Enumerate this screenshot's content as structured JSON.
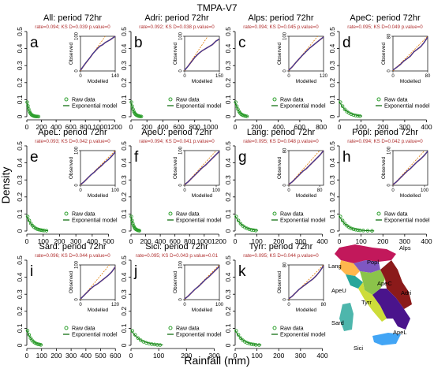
{
  "figure": {
    "suptitle": "TMPA-V7",
    "ylabel": "Density",
    "xlabel": "Rainfall (mm)",
    "legend": {
      "raw": "Raw data",
      "model": "Exponential model"
    },
    "inset_xlabel": "Modelled",
    "inset_ylabel": "Observed",
    "colors": {
      "raw": "#2ca02c",
      "model": "#006400",
      "qq": "#1f3fb4",
      "qq_edge": "#c0392b",
      "ref": "#e07b00",
      "stats": "#b03030"
    }
  },
  "map": {
    "region_labels": [
      "Alps",
      "Popl",
      "Lang",
      "ApeC",
      "Adri",
      "ApeU",
      "Tyrr",
      "Sard",
      "ApeL",
      "Sici"
    ]
  },
  "chart_data": [
    {
      "letter": "a",
      "title": "All: period 72hr",
      "stats": "rate=0.094; KS D=0.039 p.value=0",
      "type": "scatter",
      "xlim": [
        0,
        1250
      ],
      "xticks": [
        0,
        200,
        400,
        600,
        800,
        1000,
        1200
      ],
      "ylim": [
        0,
        0.5
      ],
      "yticks": [
        0.0,
        0.1,
        0.2,
        0.3,
        0.4,
        0.5
      ],
      "raw_x": [
        5,
        15,
        25,
        35,
        45,
        55,
        65,
        75,
        85,
        95,
        105,
        115,
        125,
        140,
        160
      ],
      "raw_y": [
        0.085,
        0.063,
        0.045,
        0.032,
        0.022,
        0.016,
        0.011,
        0.008,
        0.006,
        0.004,
        0.003,
        0.002,
        0.0015,
        0.001,
        0.0006
      ],
      "rate": 0.094,
      "inset": {
        "xmax": 140,
        "ymax": 100,
        "xticks": [
          0,
          140
        ],
        "yticks": [
          0,
          100
        ],
        "qq": [
          [
            0,
            2
          ],
          [
            10,
            12
          ],
          [
            20,
            22
          ],
          [
            30,
            31
          ],
          [
            40,
            40
          ],
          [
            50,
            50
          ],
          [
            60,
            58
          ],
          [
            70,
            66
          ],
          [
            80,
            72
          ],
          [
            90,
            76
          ],
          [
            100,
            82
          ],
          [
            110,
            86
          ],
          [
            120,
            90
          ],
          [
            130,
            95
          ],
          [
            140,
            100
          ]
        ]
      }
    },
    {
      "letter": "b",
      "title": "Adri: period 72hr",
      "stats": "rate=0.092; KS D=0.038 p.value=0",
      "type": "scatter",
      "xlim": [
        0,
        1150
      ],
      "xticks": [
        0,
        200,
        400,
        600,
        800,
        1000
      ],
      "ylim": [
        0,
        0.5
      ],
      "yticks": [
        0.0,
        0.1,
        0.2,
        0.3,
        0.4,
        0.5
      ],
      "raw_x": [
        5,
        15,
        25,
        35,
        45,
        55,
        65,
        75,
        85,
        95,
        105,
        115,
        130
      ],
      "raw_y": [
        0.085,
        0.062,
        0.044,
        0.031,
        0.022,
        0.015,
        0.011,
        0.008,
        0.006,
        0.004,
        0.003,
        0.002,
        0.001
      ],
      "rate": 0.092,
      "inset": {
        "xmax": 150,
        "ymax": 100,
        "xticks": [
          0,
          150
        ],
        "yticks": [
          0,
          100
        ],
        "qq": [
          [
            0,
            2
          ],
          [
            15,
            14
          ],
          [
            30,
            27
          ],
          [
            45,
            40
          ],
          [
            60,
            50
          ],
          [
            75,
            58
          ],
          [
            90,
            64
          ],
          [
            105,
            70
          ],
          [
            120,
            76
          ],
          [
            135,
            86
          ],
          [
            150,
            92
          ]
        ]
      }
    },
    {
      "letter": "c",
      "title": "Alps: period 72hr",
      "stats": "rate=0.094; KS D=0.045 p.value=0",
      "type": "scatter",
      "xlim": [
        0,
        850
      ],
      "xticks": [
        0,
        200,
        400,
        600,
        800
      ],
      "ylim": [
        0,
        0.5
      ],
      "yticks": [
        0.0,
        0.1,
        0.2,
        0.3,
        0.4,
        0.5
      ],
      "raw_x": [
        5,
        15,
        25,
        35,
        45,
        55,
        65,
        75,
        85,
        95,
        110
      ],
      "raw_y": [
        0.085,
        0.062,
        0.044,
        0.031,
        0.022,
        0.015,
        0.011,
        0.008,
        0.006,
        0.004,
        0.002
      ],
      "rate": 0.094,
      "inset": {
        "xmax": 120,
        "ymax": 100,
        "xticks": [
          0,
          120
        ],
        "yticks": [
          0,
          100
        ],
        "qq": [
          [
            0,
            2
          ],
          [
            12,
            12
          ],
          [
            24,
            24
          ],
          [
            36,
            35
          ],
          [
            48,
            46
          ],
          [
            60,
            56
          ],
          [
            72,
            66
          ],
          [
            84,
            74
          ],
          [
            96,
            82
          ],
          [
            108,
            90
          ],
          [
            120,
            98
          ]
        ]
      }
    },
    {
      "letter": "d",
      "title": "ApeC: period 72hr",
      "stats": "rate=0.095; KS D=0.049 p.value=0",
      "type": "scatter",
      "xlim": [
        0,
        420
      ],
      "xticks": [
        0,
        100,
        200,
        300,
        400
      ],
      "ylim": [
        0,
        0.5
      ],
      "yticks": [
        0.0,
        0.1,
        0.2,
        0.3,
        0.4,
        0.5
      ],
      "raw_x": [
        5,
        15,
        25,
        35,
        45,
        55,
        65,
        75,
        85,
        95
      ],
      "raw_y": [
        0.085,
        0.062,
        0.043,
        0.03,
        0.021,
        0.015,
        0.01,
        0.007,
        0.005,
        0.003
      ],
      "rate": 0.095,
      "inset": {
        "xmax": 80,
        "ymax": 80,
        "xticks": [
          0,
          80
        ],
        "yticks": [
          0,
          80
        ],
        "qq": [
          [
            0,
            2
          ],
          [
            8,
            8
          ],
          [
            16,
            14
          ],
          [
            24,
            22
          ],
          [
            32,
            28
          ],
          [
            40,
            34
          ],
          [
            48,
            44
          ],
          [
            56,
            50
          ],
          [
            64,
            56
          ],
          [
            72,
            66
          ],
          [
            80,
            78
          ]
        ]
      }
    },
    {
      "letter": "e",
      "title": "ApeL: period 72hr",
      "stats": "rate=0.093; KS D=0.042 p.value=0",
      "type": "scatter",
      "xlim": [
        0,
        560
      ],
      "xticks": [
        0,
        100,
        200,
        300,
        400,
        500
      ],
      "ylim": [
        0,
        0.5
      ],
      "yticks": [
        0.0,
        0.1,
        0.2,
        0.3,
        0.4,
        0.5
      ],
      "raw_x": [
        5,
        15,
        25,
        35,
        45,
        55,
        65,
        75,
        85,
        95,
        105,
        120
      ],
      "raw_y": [
        0.085,
        0.062,
        0.044,
        0.031,
        0.022,
        0.015,
        0.011,
        0.008,
        0.006,
        0.004,
        0.003,
        0.002
      ],
      "rate": 0.093,
      "inset": {
        "xmax": 100,
        "ymax": 100,
        "xticks": [
          0,
          100
        ],
        "yticks": [
          0,
          100
        ],
        "qq": [
          [
            0,
            2
          ],
          [
            10,
            10
          ],
          [
            20,
            20
          ],
          [
            30,
            30
          ],
          [
            40,
            38
          ],
          [
            50,
            48
          ],
          [
            60,
            56
          ],
          [
            70,
            66
          ],
          [
            80,
            74
          ],
          [
            90,
            84
          ],
          [
            100,
            96
          ]
        ]
      }
    },
    {
      "letter": "f",
      "title": "ApeU: period 72hr",
      "stats": "rate=0.094; KS D=0.041 p.value=0",
      "type": "scatter",
      "xlim": [
        0,
        1250
      ],
      "xticks": [
        0,
        200,
        400,
        600,
        800,
        1000,
        1200
      ],
      "ylim": [
        0,
        0.5
      ],
      "yticks": [
        0.0,
        0.1,
        0.2,
        0.3,
        0.4,
        0.5
      ],
      "raw_x": [
        5,
        15,
        25,
        35,
        45,
        55,
        65,
        75,
        85,
        95,
        105,
        115
      ],
      "raw_y": [
        0.085,
        0.062,
        0.044,
        0.031,
        0.022,
        0.015,
        0.011,
        0.008,
        0.006,
        0.004,
        0.003,
        0.002
      ],
      "rate": 0.094,
      "inset": {
        "xmax": 110,
        "ymax": 100,
        "xticks": [
          0,
          100
        ],
        "yticks": [
          0,
          100
        ],
        "qq": [
          [
            0,
            2
          ],
          [
            11,
            10
          ],
          [
            22,
            20
          ],
          [
            33,
            30
          ],
          [
            44,
            40
          ],
          [
            55,
            50
          ],
          [
            66,
            58
          ],
          [
            77,
            68
          ],
          [
            88,
            78
          ],
          [
            99,
            88
          ],
          [
            110,
            98
          ]
        ]
      }
    },
    {
      "letter": "g",
      "title": "Lang: period 72hr",
      "stats": "rate=0.095; KS D=0.048 p.value=0",
      "type": "scatter",
      "xlim": [
        0,
        420
      ],
      "xticks": [
        0,
        100,
        200,
        300,
        400
      ],
      "ylim": [
        0,
        0.5
      ],
      "yticks": [
        0.0,
        0.1,
        0.2,
        0.3,
        0.4,
        0.5
      ],
      "raw_x": [
        5,
        15,
        25,
        35,
        45,
        55,
        65,
        75,
        85,
        95
      ],
      "raw_y": [
        0.085,
        0.062,
        0.043,
        0.03,
        0.021,
        0.015,
        0.01,
        0.007,
        0.005,
        0.003
      ],
      "rate": 0.095,
      "inset": {
        "xmax": 90,
        "ymax": 80,
        "xticks": [
          0,
          80
        ],
        "yticks": [
          0,
          80
        ],
        "qq": [
          [
            0,
            2
          ],
          [
            9,
            8
          ],
          [
            18,
            16
          ],
          [
            27,
            24
          ],
          [
            36,
            32
          ],
          [
            45,
            38
          ],
          [
            54,
            46
          ],
          [
            63,
            54
          ],
          [
            72,
            62
          ],
          [
            81,
            70
          ],
          [
            90,
            80
          ]
        ]
      }
    },
    {
      "letter": "h",
      "title": "Popl: period 72hr",
      "stats": "rate=0.094; KS D=0.042 p.value=0",
      "type": "scatter",
      "xlim": [
        0,
        420
      ],
      "xticks": [
        0,
        100,
        200,
        300,
        400
      ],
      "ylim": [
        0,
        0.5
      ],
      "yticks": [
        0.0,
        0.1,
        0.2,
        0.3,
        0.4,
        0.5
      ],
      "raw_x": [
        5,
        15,
        25,
        35,
        45,
        55,
        65,
        75,
        85,
        95,
        110,
        130,
        150
      ],
      "raw_y": [
        0.085,
        0.062,
        0.044,
        0.031,
        0.022,
        0.015,
        0.011,
        0.008,
        0.006,
        0.004,
        0.003,
        0.002,
        0.001
      ],
      "rate": 0.094,
      "inset": {
        "xmax": 110,
        "ymax": 100,
        "xticks": [
          0,
          100
        ],
        "yticks": [
          0,
          100
        ],
        "qq": [
          [
            0,
            2
          ],
          [
            11,
            10
          ],
          [
            22,
            20
          ],
          [
            33,
            30
          ],
          [
            44,
            40
          ],
          [
            55,
            48
          ],
          [
            66,
            58
          ],
          [
            77,
            68
          ],
          [
            88,
            76
          ],
          [
            99,
            86
          ],
          [
            110,
            98
          ]
        ]
      }
    },
    {
      "letter": "i",
      "title": "Sard: period 72hr",
      "stats": "rate=0.096; KS D=0.044 p.value=0",
      "type": "scatter",
      "xlim": [
        0,
        620
      ],
      "xticks": [
        0,
        100,
        200,
        300,
        400,
        500,
        600
      ],
      "ylim": [
        0,
        0.5
      ],
      "yticks": [
        0.0,
        0.1,
        0.2,
        0.3,
        0.4,
        0.5
      ],
      "raw_x": [
        5,
        15,
        25,
        35,
        45,
        55,
        65,
        75,
        85,
        95
      ],
      "raw_y": [
        0.086,
        0.062,
        0.043,
        0.03,
        0.021,
        0.015,
        0.01,
        0.007,
        0.005,
        0.003
      ],
      "rate": 0.096,
      "inset": {
        "xmax": 120,
        "ymax": 100,
        "xticks": [
          0,
          120
        ],
        "yticks": [
          0,
          100
        ],
        "qq": [
          [
            0,
            2
          ],
          [
            12,
            12
          ],
          [
            24,
            22
          ],
          [
            36,
            32
          ],
          [
            48,
            40
          ],
          [
            60,
            46
          ],
          [
            72,
            54
          ],
          [
            84,
            62
          ],
          [
            96,
            70
          ],
          [
            108,
            80
          ],
          [
            120,
            94
          ]
        ]
      }
    },
    {
      "letter": "j",
      "title": "Sici: period 72hr",
      "stats": "rate=0.095; KS D=0.043 p.value=0.01",
      "type": "scatter",
      "xlim": [
        0,
        330
      ],
      "xticks": [
        0,
        100,
        200,
        300
      ],
      "ylim": [
        0,
        0.5
      ],
      "yticks": [
        0.0,
        0.1,
        0.2,
        0.3,
        0.4,
        0.5
      ],
      "raw_x": [
        5,
        15,
        25,
        35,
        45,
        55,
        65,
        75,
        85,
        95,
        105
      ],
      "raw_y": [
        0.085,
        0.062,
        0.043,
        0.03,
        0.021,
        0.015,
        0.01,
        0.007,
        0.005,
        0.003,
        0.002
      ],
      "rate": 0.095,
      "inset": {
        "xmax": 100,
        "ymax": 100,
        "xticks": [
          0,
          100
        ],
        "yticks": [
          0,
          100
        ],
        "qq": [
          [
            0,
            2
          ],
          [
            10,
            10
          ],
          [
            20,
            20
          ],
          [
            30,
            30
          ],
          [
            40,
            38
          ],
          [
            50,
            48
          ],
          [
            60,
            58
          ],
          [
            70,
            66
          ],
          [
            80,
            76
          ],
          [
            90,
            86
          ],
          [
            100,
            96
          ]
        ]
      }
    },
    {
      "letter": "k",
      "title": "Tyrr: period 72hr",
      "stats": "rate=0.095; KS D=0.044 p.value=0",
      "type": "scatter",
      "xlim": [
        0,
        420
      ],
      "xticks": [
        0,
        100,
        200,
        300,
        400
      ],
      "ylim": [
        0,
        0.5
      ],
      "yticks": [
        0.0,
        0.1,
        0.2,
        0.3,
        0.4,
        0.5
      ],
      "raw_x": [
        5,
        15,
        25,
        35,
        45,
        55,
        65,
        75,
        85,
        95,
        110
      ],
      "raw_y": [
        0.085,
        0.062,
        0.043,
        0.03,
        0.021,
        0.015,
        0.01,
        0.007,
        0.005,
        0.003,
        0.002
      ],
      "rate": 0.095,
      "inset": {
        "xmax": 80,
        "ymax": 80,
        "xticks": [
          0,
          80
        ],
        "yticks": [
          0,
          80
        ],
        "qq": [
          [
            0,
            2
          ],
          [
            8,
            8
          ],
          [
            16,
            16
          ],
          [
            24,
            24
          ],
          [
            32,
            30
          ],
          [
            40,
            36
          ],
          [
            48,
            42
          ],
          [
            56,
            48
          ],
          [
            64,
            56
          ],
          [
            72,
            66
          ],
          [
            80,
            78
          ]
        ]
      }
    }
  ]
}
